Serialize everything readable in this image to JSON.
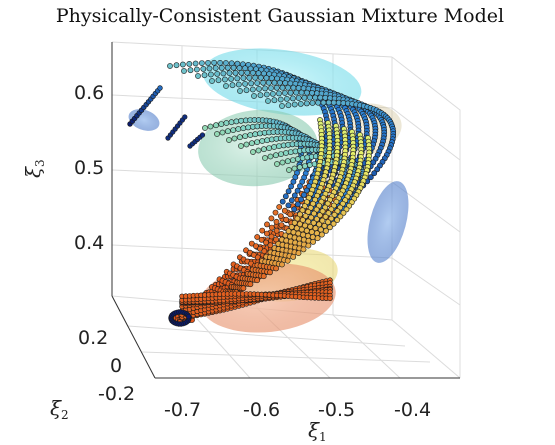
{
  "chart_data": {
    "type": "scatter",
    "title": "Physically-Consistent Gaussian Mixture Model",
    "axes": {
      "x": {
        "label": "ξ",
        "sub": "1",
        "ticks": [
          "-0.7",
          "-0.6",
          "-0.5",
          "-0.4"
        ]
      },
      "y": {
        "label": "ξ",
        "sub": "2",
        "ticks": [
          "0.2",
          "0",
          "-0.2"
        ]
      },
      "z": {
        "label": "ξ",
        "sub": "3",
        "ticks": [
          "0.6",
          "0.5",
          "0.4"
        ]
      }
    },
    "grid": true,
    "projection": "3d",
    "colors": {
      "low": "#0a1a6a",
      "mid1": "#2a7fd4",
      "mid2": "#e8f06a",
      "high": "#e2541a",
      "ellipsoid_cyan": "#7fe3f0",
      "ellipsoid_green": "#a5dcc6",
      "ellipsoid_orange": "#f2a27a",
      "ellipsoid_yellow": "#efe58a",
      "ellipsoid_blue": "#6a8fd8"
    },
    "ellipsoids": [
      {
        "name": "cyan",
        "center": [
          -0.55,
          0.1,
          0.63
        ]
      },
      {
        "name": "green",
        "center": [
          -0.6,
          0.05,
          0.55
        ]
      },
      {
        "name": "orange-red",
        "center": [
          -0.6,
          -0.05,
          0.38
        ]
      },
      {
        "name": "blue-left",
        "center": [
          -0.78,
          0.2,
          0.6
        ]
      },
      {
        "name": "blue-right",
        "center": [
          -0.4,
          0.0,
          0.46
        ]
      }
    ]
  }
}
